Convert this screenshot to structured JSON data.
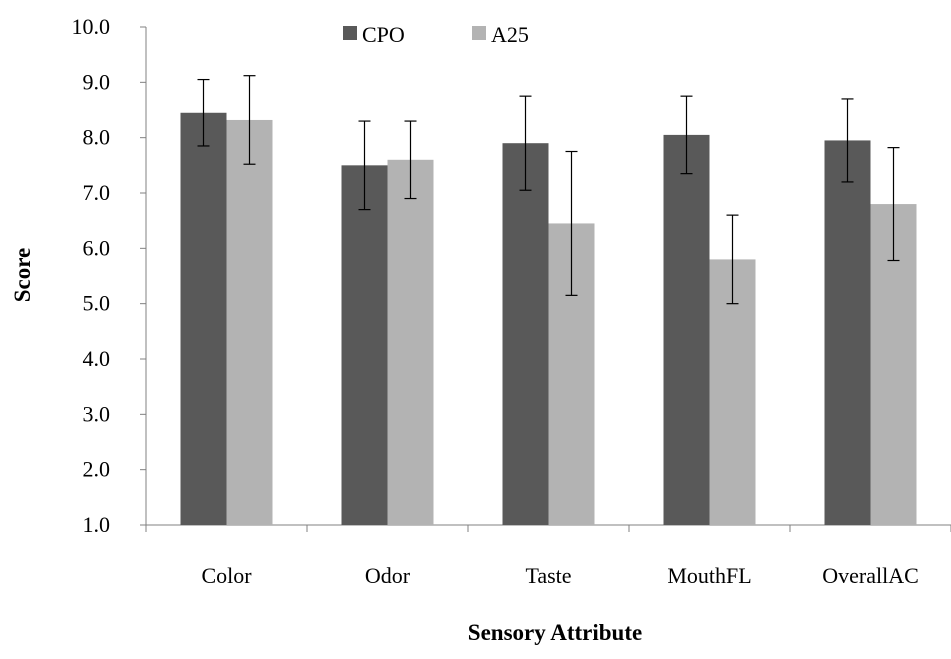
{
  "chart_data": {
    "type": "bar",
    "title": "",
    "xlabel": "Sensory Attribute",
    "ylabel": "Score",
    "ylim": [
      1.0,
      10.0
    ],
    "yticks": [
      "1.0",
      "2.0",
      "3.0",
      "4.0",
      "5.0",
      "6.0",
      "7.0",
      "8.0",
      "9.0",
      "10.0"
    ],
    "categories": [
      "Color",
      "Odor",
      "Taste",
      "MouthFL",
      "OverallAC"
    ],
    "series": [
      {
        "name": "CPO",
        "color": "#595959",
        "values": [
          8.45,
          7.5,
          7.9,
          8.05,
          7.95
        ],
        "errors": [
          0.6,
          0.8,
          0.85,
          0.7,
          0.75
        ]
      },
      {
        "name": "A25",
        "color": "#b3b3b3",
        "values": [
          8.32,
          7.6,
          6.45,
          5.8,
          6.8
        ],
        "errors": [
          0.8,
          0.7,
          1.3,
          0.8,
          1.02
        ]
      }
    ],
    "legend_position": "top-center",
    "grid": false
  }
}
